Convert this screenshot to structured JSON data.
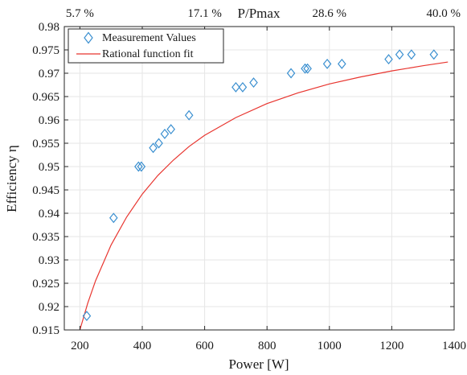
{
  "colors": {
    "marker": "#3a8fd0",
    "fit_line": "#e8352f",
    "axis": "#262626",
    "grid": "#e6e6e6"
  },
  "chart_data": {
    "type": "scatter",
    "xlabel": "Power [W]",
    "ylabel": "Efficiency η",
    "xlim": [
      150,
      1400
    ],
    "ylim": [
      0.915,
      0.98
    ],
    "xticks": [
      200,
      400,
      600,
      800,
      1000,
      1200,
      1400
    ],
    "xtick_labels": [
      "200",
      "400",
      "600",
      "800",
      "1000",
      "1200",
      "1400"
    ],
    "yticks": [
      0.915,
      0.92,
      0.925,
      0.93,
      0.935,
      0.94,
      0.945,
      0.95,
      0.955,
      0.96,
      0.965,
      0.97,
      0.975,
      0.98
    ],
    "ytick_labels": [
      "0.915",
      "0.92",
      "0.925",
      "0.93",
      "0.935",
      "0.94",
      "0.945",
      "0.95",
      "0.955",
      "0.96",
      "0.965",
      "0.97",
      "0.975",
      "0.98"
    ],
    "grid": true,
    "top_axis": {
      "label": "P/Pmax",
      "ticks": [
        {
          "x": 200,
          "label": "5.7 %"
        },
        {
          "x": 600,
          "label": "17.1 %"
        },
        {
          "x": 1000,
          "label": "28.6 %"
        },
        {
          "x": 1400,
          "label": "40.0 %"
        }
      ]
    },
    "legend_position": "top-left",
    "series": [
      {
        "name": "Measurement Values",
        "style": "markers-diamond",
        "x": [
          222,
          308,
          388,
          397,
          435,
          453,
          472,
          492,
          550,
          700,
          722,
          757,
          877,
          922,
          930,
          993,
          1040,
          1190,
          1225,
          1263,
          1335
        ],
        "y": [
          0.918,
          0.939,
          0.95,
          0.95,
          0.954,
          0.955,
          0.957,
          0.958,
          0.961,
          0.967,
          0.967,
          0.968,
          0.97,
          0.971,
          0.971,
          0.972,
          0.972,
          0.973,
          0.974,
          0.974,
          0.974
        ]
      },
      {
        "name": "Rational function fit",
        "style": "line",
        "x": [
          200,
          225,
          250,
          300,
          350,
          400,
          450,
          500,
          550,
          600,
          700,
          800,
          900,
          1000,
          1100,
          1200,
          1300,
          1380
        ],
        "y": [
          0.915,
          0.9207,
          0.9255,
          0.9332,
          0.9392,
          0.9441,
          0.9481,
          0.9514,
          0.9543,
          0.9567,
          0.9605,
          0.9635,
          0.9658,
          0.9677,
          0.9692,
          0.9705,
          0.9716,
          0.9724
        ]
      }
    ]
  }
}
